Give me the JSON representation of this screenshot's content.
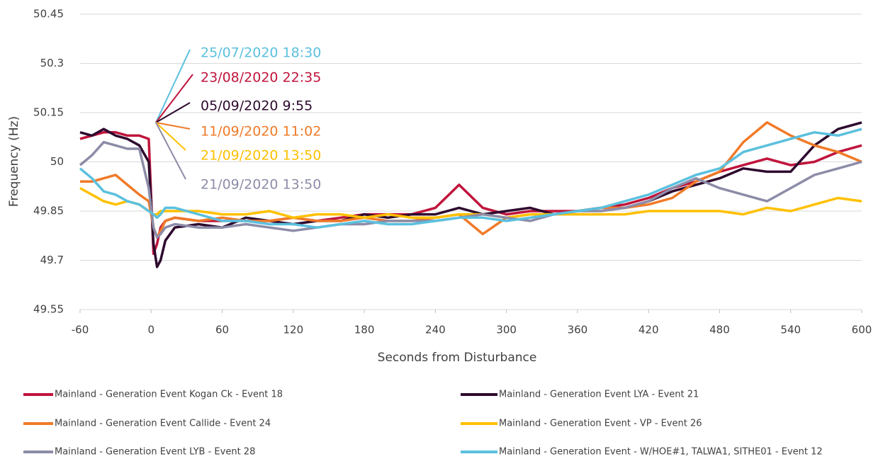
{
  "chart_data": {
    "type": "line",
    "x_label": "Seconds from Disturbance",
    "y_label": "Frequency (Hz)",
    "x": [
      -60,
      -50,
      -40,
      -30,
      -20,
      -10,
      -2,
      2,
      5,
      8,
      12,
      20,
      40,
      60,
      80,
      100,
      120,
      140,
      160,
      180,
      200,
      220,
      240,
      260,
      280,
      300,
      320,
      340,
      360,
      380,
      400,
      420,
      440,
      460,
      480,
      500,
      520,
      540,
      560,
      580,
      600
    ],
    "xlim": [
      -60,
      600
    ],
    "xticks": [
      -60,
      0,
      60,
      120,
      180,
      240,
      300,
      360,
      420,
      480,
      540,
      600
    ],
    "ylim": [
      49.55,
      50.45
    ],
    "yticks": [
      49.55,
      49.7,
      49.85,
      50,
      50.15,
      50.3,
      50.45
    ],
    "grid": true,
    "series": [
      {
        "name": "Mainland - Generation Event Kogan Ck - Event 18",
        "color": "#c0143c",
        "values": [
          50.07,
          50.08,
          50.09,
          50.09,
          50.08,
          50.08,
          50.07,
          49.72,
          49.75,
          49.8,
          49.82,
          49.83,
          49.82,
          49.82,
          49.82,
          49.82,
          49.83,
          49.82,
          49.83,
          49.84,
          49.84,
          49.84,
          49.86,
          49.93,
          49.86,
          49.84,
          49.85,
          49.85,
          49.85,
          49.86,
          49.87,
          49.89,
          49.92,
          49.94,
          49.97,
          49.99,
          50.01,
          49.99,
          50.0,
          50.03,
          50.05
        ]
      },
      {
        "name": "Mainland - Generation Event LYA - Event 21",
        "color": "#2e0a2e",
        "values": [
          50.09,
          50.08,
          50.1,
          50.08,
          50.07,
          50.05,
          50.0,
          49.75,
          49.68,
          49.7,
          49.76,
          49.8,
          49.81,
          49.8,
          49.83,
          49.82,
          49.81,
          49.82,
          49.82,
          49.84,
          49.83,
          49.84,
          49.84,
          49.86,
          49.84,
          49.85,
          49.86,
          49.84,
          49.85,
          49.86,
          49.86,
          49.88,
          49.91,
          49.93,
          49.95,
          49.98,
          49.97,
          49.97,
          50.05,
          50.1,
          50.12
        ]
      },
      {
        "name": "Mainland - Generation Event Callide - Event 24",
        "color": "#f07a28",
        "values": [
          49.94,
          49.94,
          49.95,
          49.96,
          49.93,
          49.9,
          49.88,
          49.8,
          49.77,
          49.79,
          49.82,
          49.83,
          49.82,
          49.83,
          49.82,
          49.82,
          49.83,
          49.82,
          49.82,
          49.83,
          49.82,
          49.82,
          49.83,
          49.84,
          49.78,
          49.83,
          49.84,
          49.84,
          49.85,
          49.86,
          49.86,
          49.87,
          49.89,
          49.94,
          49.97,
          50.06,
          50.12,
          50.08,
          50.05,
          50.03,
          50.0
        ]
      },
      {
        "name": "Mainland - Generation Event - VP  - Event 26",
        "color": "#ffc000",
        "values": [
          49.92,
          49.9,
          49.88,
          49.87,
          49.88,
          49.87,
          49.85,
          49.84,
          49.84,
          49.85,
          49.85,
          49.85,
          49.85,
          49.84,
          49.84,
          49.85,
          49.83,
          49.84,
          49.84,
          49.83,
          49.84,
          49.83,
          49.83,
          49.84,
          49.84,
          49.83,
          49.84,
          49.84,
          49.84,
          49.84,
          49.84,
          49.85,
          49.85,
          49.85,
          49.85,
          49.84,
          49.86,
          49.85,
          49.87,
          49.89,
          49.88
        ]
      },
      {
        "name": "Mainland - Generation Event LYB - Event 28",
        "color": "#8c8ca8",
        "values": [
          49.99,
          50.02,
          50.06,
          50.05,
          50.04,
          50.04,
          49.92,
          49.8,
          49.77,
          49.78,
          49.8,
          49.81,
          49.8,
          49.8,
          49.81,
          49.8,
          49.79,
          49.8,
          49.81,
          49.81,
          49.82,
          49.82,
          49.82,
          49.83,
          49.84,
          49.83,
          49.82,
          49.84,
          49.85,
          49.85,
          49.86,
          49.88,
          49.92,
          49.95,
          49.92,
          49.9,
          49.88,
          49.92,
          49.96,
          49.98,
          50.0
        ]
      },
      {
        "name": "Mainland - Generation Event - W/HOE#1, TALWA1, SITHE01 - Event 12",
        "color": "#5bc0de",
        "values": [
          49.98,
          49.95,
          49.91,
          49.9,
          49.88,
          49.87,
          49.85,
          49.84,
          49.83,
          49.84,
          49.86,
          49.86,
          49.84,
          49.82,
          49.82,
          49.81,
          49.81,
          49.8,
          49.81,
          49.82,
          49.81,
          49.81,
          49.82,
          49.83,
          49.83,
          49.82,
          49.83,
          49.84,
          49.85,
          49.86,
          49.88,
          49.9,
          49.93,
          49.96,
          49.98,
          50.03,
          50.05,
          50.07,
          50.09,
          50.08,
          50.1
        ]
      }
    ],
    "annotations": [
      {
        "text": "25/07/2020 18:30",
        "color": "#5bc0de"
      },
      {
        "text": "23/08/2020 22:35",
        "color": "#c0143c"
      },
      {
        "text": "05/09/2020 9:55",
        "color": "#2e0a2e"
      },
      {
        "text": "11/09/2020 11:02",
        "color": "#f07a28"
      },
      {
        "text": "21/09/2020 13:50",
        "color": "#ffc000"
      },
      {
        "text": "21/09/2020 13:50",
        "color": "#8c8ca8"
      }
    ]
  }
}
